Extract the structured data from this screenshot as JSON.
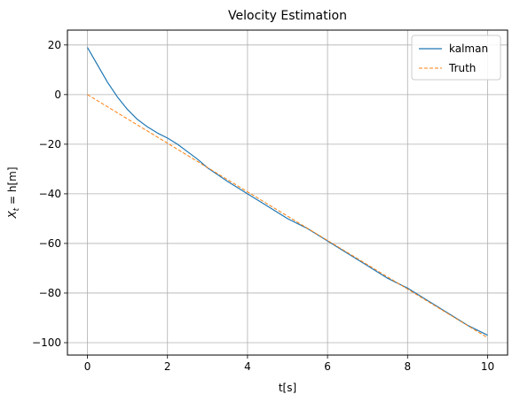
{
  "chart_data": {
    "type": "line",
    "title": "Velocity Estimation",
    "xlabel": "t[s]",
    "ylabel": "X_t = h[m]",
    "xlim": [
      -0.5,
      10.5
    ],
    "ylim": [
      -105,
      26
    ],
    "xticks": [
      0,
      2,
      4,
      6,
      8,
      10
    ],
    "yticks": [
      -100,
      -80,
      -60,
      -40,
      -20,
      0,
      20
    ],
    "grid": true,
    "legend_position": "top-right",
    "series": [
      {
        "name": "kalman",
        "color": "#1f77b4",
        "style": "solid",
        "x": [
          0,
          0.25,
          0.5,
          0.75,
          1.0,
          1.25,
          1.5,
          1.75,
          2.0,
          2.25,
          2.5,
          2.75,
          3.0,
          3.5,
          4.0,
          4.5,
          5.0,
          5.5,
          6.0,
          6.5,
          7.0,
          7.5,
          8.0,
          8.5,
          9.0,
          9.5,
          10.0
        ],
        "y": [
          19,
          12,
          5,
          -1,
          -6,
          -10,
          -13,
          -15.5,
          -17.5,
          -20,
          -23,
          -26,
          -29.5,
          -35,
          -40,
          -45,
          -50,
          -54,
          -59,
          -64,
          -69,
          -74,
          -78,
          -83,
          -88,
          -93,
          -97
        ]
      },
      {
        "name": "Truth",
        "color": "#ff7f0e",
        "style": "dashed",
        "x": [
          0,
          10
        ],
        "y": [
          0,
          -98
        ]
      }
    ]
  }
}
